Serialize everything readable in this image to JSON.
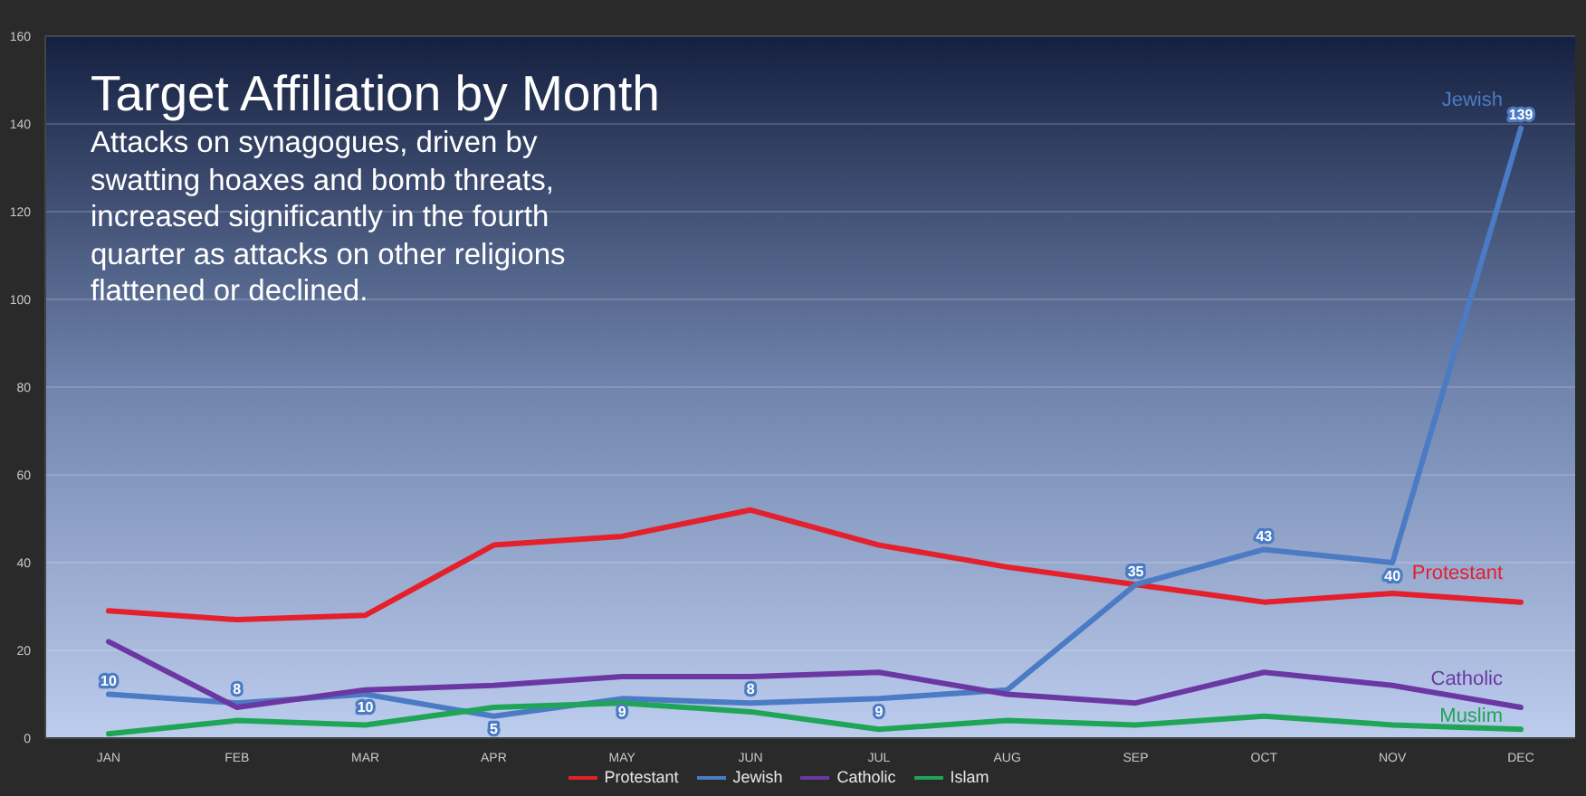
{
  "chart_data": {
    "type": "line",
    "title": "Target Affiliation by Month",
    "subtitle": "Attacks on synagogues, driven by swatting hoaxes and bomb threats, increased significantly in the fourth quarter as attacks on other religions flattened or declined.",
    "categories": [
      "JAN",
      "FEB",
      "MAR",
      "APR",
      "MAY",
      "JUN",
      "JUL",
      "AUG",
      "SEP",
      "OCT",
      "NOV",
      "DEC"
    ],
    "series": [
      {
        "name": "Protestant",
        "color": "#e3202b",
        "values": [
          29,
          27,
          28,
          44,
          46,
          52,
          44,
          39,
          35,
          31,
          33,
          31
        ]
      },
      {
        "name": "Jewish",
        "color": "#4a7bc4",
        "values": [
          10,
          8,
          10,
          5,
          9,
          8,
          9,
          11,
          35,
          43,
          40,
          139
        ],
        "value_labels": [
          "10",
          "8",
          "10",
          "5",
          "9",
          "8",
          "9",
          null,
          "35",
          "43",
          "40",
          "139"
        ]
      },
      {
        "name": "Catholic",
        "color": "#6b38a3",
        "values": [
          22,
          7,
          11,
          12,
          14,
          14,
          15,
          10,
          8,
          15,
          12,
          7
        ]
      },
      {
        "name": "Islam",
        "color": "#1fa557",
        "values": [
          1,
          4,
          3,
          7,
          8,
          6,
          2,
          4,
          3,
          5,
          3,
          2
        ]
      }
    ],
    "ylim": [
      0,
      160
    ],
    "yticks": [
      0,
      20,
      40,
      60,
      80,
      100,
      120,
      140,
      160
    ],
    "grid": "y",
    "legend": "bottom",
    "annotations": [
      "Protestant",
      "Jewish",
      "Catholic",
      "Muslim"
    ]
  }
}
